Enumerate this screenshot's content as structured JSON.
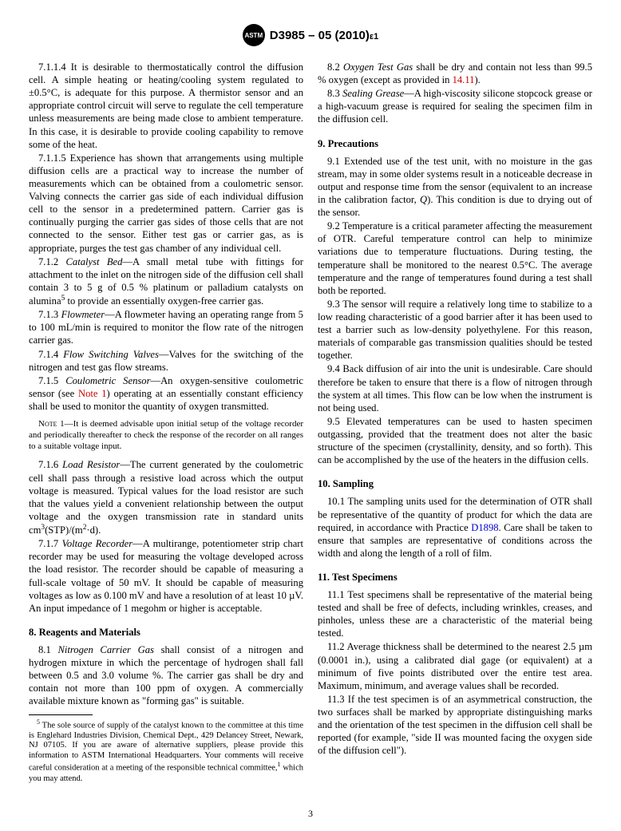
{
  "header": {
    "logo_text": "ASTM",
    "standard_id": "D3985 – 05 (2010)",
    "epsilon": "ε1"
  },
  "left_column": {
    "p_7_1_1_4": "7.1.1.4 It is desirable to thermostatically control the diffusion cell. A simple heating or heating/cooling system regulated to ±0.5°C, is adequate for this purpose. A thermistor sensor and an appropriate control circuit will serve to regulate the cell temperature unless measurements are being made close to ambient temperature. In this case, it is desirable to provide cooling capability to remove some of the heat.",
    "p_7_1_1_5": "7.1.1.5 Experience has shown that arrangements using multiple diffusion cells are a practical way to increase the number of measurements which can be obtained from a coulometric sensor. Valving connects the carrier gas side of each individual diffusion cell to the sensor in a predetermined pattern. Carrier gas is continually purging the carrier gas sides of those cells that are not connected to the sensor. Either test gas or carrier gas, as is appropriate, purges the test gas chamber of any individual cell.",
    "p_7_1_2_prefix": "7.1.2 ",
    "p_7_1_2_title": "Catalyst Bed",
    "p_7_1_2_body": "—A small metal tube with fittings for attachment to the inlet on the nitrogen side of the diffusion cell shall contain 3 to 5 g of 0.5 % platinum or palladium catalysts on alumina",
    "p_7_1_2_sup": "5",
    "p_7_1_2_tail": " to provide an essentially oxygen-free carrier gas.",
    "p_7_1_3_prefix": "7.1.3 ",
    "p_7_1_3_title": "Flowmeter",
    "p_7_1_3_body": "—A flowmeter having an operating range from 5 to 100 mL/min is required to monitor the flow rate of the nitrogen carrier gas.",
    "p_7_1_4_prefix": "7.1.4 ",
    "p_7_1_4_title": "Flow Switching Valves",
    "p_7_1_4_body": "—Valves for the switching of the nitrogen and test gas flow streams.",
    "p_7_1_5_prefix": "7.1.5 ",
    "p_7_1_5_title": "Coulometric Sensor",
    "p_7_1_5_body1": "—An oxygen-sensitive coulometric sensor (see ",
    "p_7_1_5_note_ref": "Note 1",
    "p_7_1_5_body2": ") operating at an essentially constant efficiency shall be used to monitor the quantity of oxygen transmitted.",
    "note1_label": "Note",
    "note1_num": " 1—",
    "note1_body": "It is deemed advisable upon initial setup of the voltage recorder and periodically thereafter to check the response of the recorder on all ranges to a suitable voltage input.",
    "p_7_1_6_prefix": "7.1.6 ",
    "p_7_1_6_title": "Load Resistor",
    "p_7_1_6_body": "—The current generated by the coulometric cell shall pass through a resistive load across which the output voltage is measured. Typical values for the load resistor are such that the values yield a convenient relationship between the output voltage and the oxygen transmission rate in standard units cm",
    "p_7_1_6_sup1": "3",
    "p_7_1_6_mid": "(STP)/(m",
    "p_7_1_6_sup2": "2",
    "p_7_1_6_tail": "·d).",
    "p_7_1_7_prefix": "7.1.7 ",
    "p_7_1_7_title": "Voltage Recorder",
    "p_7_1_7_body": "—A multirange, potentiometer strip chart recorder may be used for measuring the voltage developed across the load resistor. The recorder should be capable of measuring a full-scale voltage of 50 mV. It should be capable of measuring voltages as low as 0.100 mV and have a resolution of at least 10 µV. An input impedance of 1 megohm or higher is acceptable.",
    "sec8_heading": "8. Reagents and Materials",
    "p_8_1_prefix": "8.1 ",
    "p_8_1_title": "Nitrogen Carrier Gas",
    "p_8_1_body": " shall consist of a nitrogen and hydrogen mixture in which the percentage of hydrogen shall fall between 0.5 and 3.0 volume %. The carrier gas shall be dry and contain not more than 100 ppm of oxygen. A commercially available mixture known as \"forming gas\" is suitable.",
    "footnote5_sup": "5",
    "footnote5_body1": " The sole source of supply of the catalyst known to the committee at this time is Englehard Industries Division, Chemical Dept., 429 Delancey Street, Newark, NJ 07105. If you are aware of alternative suppliers, please provide this information to ASTM International Headquarters. Your comments will receive careful consideration at a meeting of the responsible technical committee,",
    "footnote5_sup2": "1",
    "footnote5_body2": " which you may attend."
  },
  "right_column": {
    "p_8_2_prefix": "8.2 ",
    "p_8_2_title": "Oxygen Test Gas",
    "p_8_2_body1": " shall be dry and contain not less than 99.5 % oxygen (except as provided in ",
    "p_8_2_ref": "14.11",
    "p_8_2_body2": ").",
    "p_8_3_prefix": "8.3 ",
    "p_8_3_title": "Sealing Grease",
    "p_8_3_body": "—A high-viscosity silicone stopcock grease or a high-vacuum grease is required for sealing the specimen film in the diffusion cell.",
    "sec9_heading": "9. Precautions",
    "p_9_1_body1": "9.1 Extended use of the test unit, with no moisture in the gas stream, may in some older systems result in a noticeable decrease in output and response time from the sensor (equivalent to an increase in the calibration factor, ",
    "p_9_1_q": "Q",
    "p_9_1_body2": "). This condition is due to drying out of the sensor.",
    "p_9_2": "9.2 Temperature is a critical parameter affecting the measurement of OTR. Careful temperature control can help to minimize variations due to temperature fluctuations. During testing, the temperature shall be monitored to the nearest 0.5°C. The average temperature and the range of temperatures found during a test shall both be reported.",
    "p_9_3": "9.3 The sensor will require a relatively long time to stabilize to a low reading characteristic of a good barrier after it has been used to test a barrier such as low-density polyethylene. For this reason, materials of comparable gas transmission qualities should be tested together.",
    "p_9_4": "9.4 Back diffusion of air into the unit is undesirable. Care should therefore be taken to ensure that there is a flow of nitrogen through the system at all times. This flow can be low when the instrument is not being used.",
    "p_9_5": "9.5 Elevated temperatures can be used to hasten specimen outgassing, provided that the treatment does not alter the basic structure of the specimen (crystallinity, density, and so forth). This can be accomplished by the use of the heaters in the diffusion cells.",
    "sec10_heading": "10. Sampling",
    "p_10_1_body1": "10.1 The sampling units used for the determination of OTR shall be representative of the quantity of product for which the data are required, in accordance with Practice ",
    "p_10_1_ref": "D1898",
    "p_10_1_body2": ". Care shall be taken to ensure that samples are representative of conditions across the width and along the length of a roll of film.",
    "sec11_heading": "11. Test Specimens",
    "p_11_1": "11.1 Test specimens shall be representative of the material being tested and shall be free of defects, including wrinkles, creases, and pinholes, unless these are a characteristic of the material being tested.",
    "p_11_2": "11.2 Average thickness shall be determined to the nearest 2.5 µm (0.0001 in.), using a calibrated dial gage (or equivalent) at a minimum of five points distributed over the entire test area. Maximum, minimum, and average values shall be recorded.",
    "p_11_3": "11.3 If the test specimen is of an asymmetrical construction, the two surfaces shall be marked by appropriate distinguishing marks and the orientation of the test specimen in the diffusion cell shall be reported (for example, \"side II was mounted facing the oxygen side of the diffusion cell\")."
  },
  "page_number": "3"
}
